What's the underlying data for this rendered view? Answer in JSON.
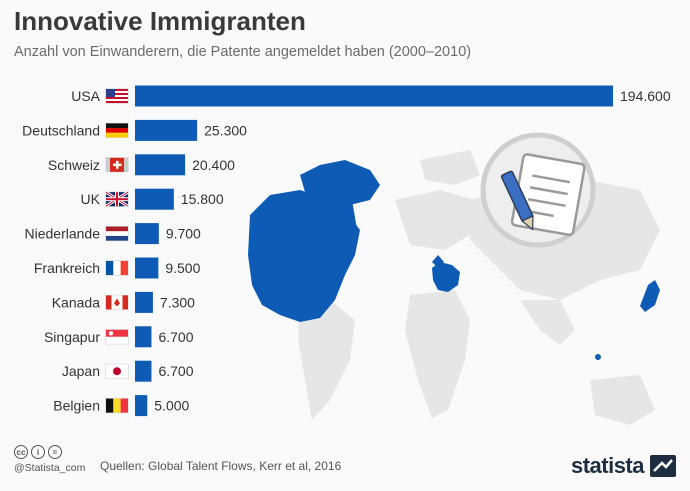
{
  "title": "Innovative Immigranten",
  "subtitle": "Anzahl von Einwanderern, die Patente angemeldet haben (2000–2010)",
  "source": "Quellen: Global Talent Flows, Kerr et al, 2016",
  "handle": "@Statista_com",
  "brand": "statista",
  "colors": {
    "bar": "#0d5bb5",
    "map_highlight": "#0d5bb5",
    "map_base": "#e3e3e3"
  },
  "chart_data": {
    "type": "bar",
    "orientation": "horizontal",
    "categories": [
      "USA",
      "Deutschland",
      "Schweiz",
      "UK",
      "Niederlande",
      "Frankreich",
      "Kanada",
      "Singapur",
      "Japan",
      "Belgien"
    ],
    "values": [
      194600,
      25300,
      20400,
      15800,
      9700,
      9500,
      7300,
      6700,
      6700,
      5000
    ],
    "value_labels": [
      "194.600",
      "25.300",
      "20.400",
      "15.800",
      "9.700",
      "9.500",
      "7.300",
      "6.700",
      "6.700",
      "5.000"
    ],
    "title": "Innovative Immigranten",
    "subtitle": "Anzahl von Einwanderern, die Patente angemeldet haben (2000–2010)",
    "xlim": [
      0,
      194600
    ],
    "grid": false,
    "legend": "none"
  },
  "flags": [
    "us-flag-icon",
    "de-flag-icon",
    "ch-flag-icon",
    "uk-flag-icon",
    "nl-flag-icon",
    "fr-flag-icon",
    "ca-flag-icon",
    "sg-flag-icon",
    "jp-flag-icon",
    "be-flag-icon"
  ],
  "illustration": "patent-document-pen-icon"
}
